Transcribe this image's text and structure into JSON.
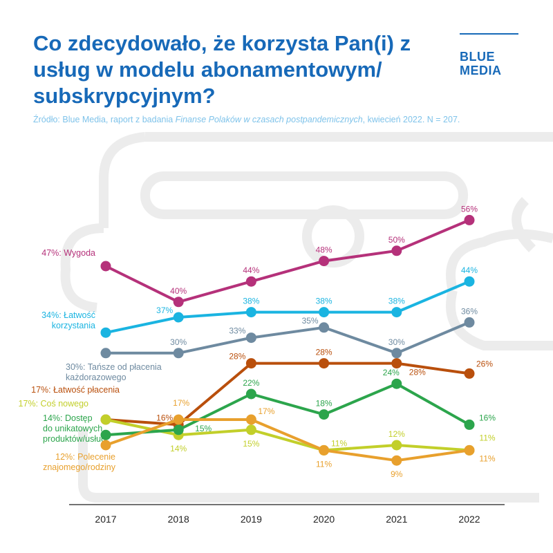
{
  "title": "Co zdecydowało, że korzysta Pan(i) z usług w modelu abonamentowym/ subskrypcyjnym?",
  "source": {
    "prefix": "Źródło: Blue Media, raport z badania ",
    "italic": "Finanse Polaków w czasach postpandemicznych",
    "suffix": ", kwiecień 2022. N = 207."
  },
  "logo": {
    "line1": "BLUE",
    "line2": "MEDIA"
  },
  "chart_data": {
    "type": "line",
    "categories": [
      "2017",
      "2018",
      "2019",
      "2020",
      "2021",
      "2022"
    ],
    "unit": "%",
    "series": [
      {
        "name": "Wygoda",
        "start_label": [
          "47%: Wygoda"
        ],
        "color": "#b5317a",
        "values": [
          47,
          40,
          44,
          48,
          50,
          56
        ]
      },
      {
        "name": "Łatwość korzystania",
        "start_label": [
          "34%: Łatwość",
          "korzystania"
        ],
        "color": "#1ab4e1",
        "values": [
          34,
          37,
          38,
          38,
          38,
          44
        ]
      },
      {
        "name": "Tańsze od płacenia każdorazowego",
        "start_label": [
          "30%: Tańsze od płacenia",
          "każdorazowego"
        ],
        "color": "#6e8aa0",
        "values": [
          30,
          30,
          33,
          35,
          30,
          36
        ]
      },
      {
        "name": "Łatwość płacenia",
        "start_label": [
          "17%: Łatwość płacenia"
        ],
        "color": "#b94f0c",
        "values": [
          17,
          16,
          28,
          28,
          28,
          26
        ]
      },
      {
        "name": "Coś nowego",
        "start_label": [
          "17%: Coś nowego"
        ],
        "color": "#c2cf2a",
        "values": [
          17,
          14,
          15,
          11,
          12,
          11
        ]
      },
      {
        "name": "Dostęp do unikatowych produktów/usług",
        "start_label": [
          "14%: Dostęp",
          "do unikatowych",
          "produktów/usług"
        ],
        "color": "#2ca54c",
        "values": [
          14,
          15,
          22,
          18,
          24,
          16
        ]
      },
      {
        "name": "Polecenie znajomego/rodziny",
        "start_label": [
          "12%: Polecenie",
          "znajomego/rodziny"
        ],
        "color": "#e8a02d",
        "values": [
          12,
          17,
          17,
          11,
          9,
          11
        ]
      }
    ]
  }
}
